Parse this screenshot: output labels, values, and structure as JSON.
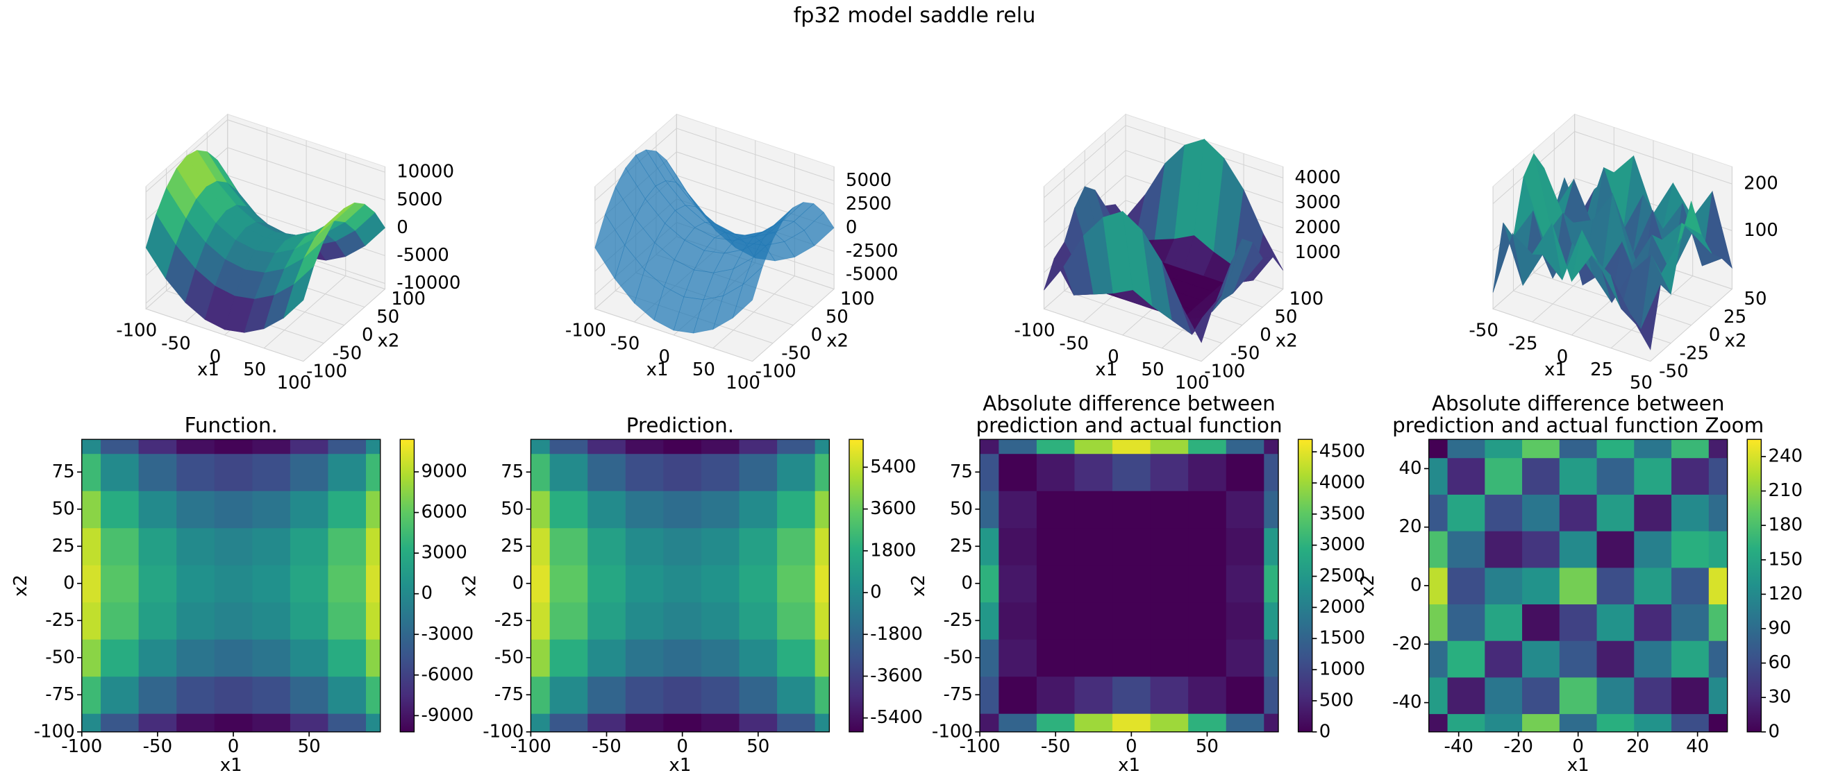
{
  "title": "fp32 model saddle relu",
  "chart_data": [
    {
      "type": "surface_contour",
      "title": [
        "Function."
      ],
      "xlabel": "x1",
      "ylabel": "x2",
      "colormap": "viridis",
      "x": [
        -100,
        -75,
        -50,
        -25,
        0,
        25,
        50,
        75,
        100
      ],
      "y": [
        -100,
        -75,
        -50,
        -25,
        0,
        25,
        50,
        75,
        100
      ],
      "z": [
        [
          0,
          -4375,
          -7500,
          -9375,
          -10000,
          -9375,
          -7500,
          -4375,
          0
        ],
        [
          4375,
          0,
          -3125,
          -5000,
          -5625,
          -5000,
          -3125,
          0,
          4375
        ],
        [
          7500,
          3125,
          0,
          -1875,
          -2500,
          -1875,
          0,
          3125,
          7500
        ],
        [
          9375,
          5000,
          1875,
          0,
          -625,
          0,
          1875,
          5000,
          9375
        ],
        [
          10000,
          5625,
          2500,
          625,
          0,
          625,
          2500,
          5625,
          10000
        ],
        [
          9375,
          5000,
          1875,
          0,
          -625,
          0,
          1875,
          5000,
          9375
        ],
        [
          7500,
          3125,
          0,
          -1875,
          -2500,
          -1875,
          0,
          3125,
          7500
        ],
        [
          4375,
          0,
          -3125,
          -5000,
          -5625,
          -5000,
          -3125,
          0,
          4375
        ],
        [
          0,
          -4375,
          -7500,
          -9375,
          -10000,
          -9375,
          -7500,
          -4375,
          0
        ]
      ],
      "surface": {
        "xlim": [
          -100,
          100
        ],
        "ylim": [
          -100,
          100
        ],
        "zlim": [
          -11000,
          11000
        ],
        "xticks": [
          -100,
          -50,
          0,
          50,
          100
        ],
        "yticks": [
          -100,
          -50,
          0,
          50,
          100
        ],
        "zticks": [
          -10000,
          -5000,
          0,
          5000,
          10000
        ]
      },
      "contour": {
        "xlim": [
          -100,
          97
        ],
        "ylim": [
          -100,
          97
        ],
        "xticks": [
          -100,
          -50,
          0,
          50
        ],
        "yticks": [
          -100,
          -75,
          -50,
          -25,
          0,
          25,
          50,
          75
        ],
        "clim": [
          -10200,
          11400
        ],
        "cticks": [
          -9000,
          -6000,
          -3000,
          0,
          3000,
          6000,
          9000
        ]
      }
    },
    {
      "type": "surface_contour",
      "title": [
        "Prediction."
      ],
      "xlabel": "x1",
      "ylabel": "x2",
      "colormap": "viridis",
      "x": [
        -100,
        -75,
        -50,
        -25,
        0,
        25,
        50,
        75,
        100
      ],
      "y": [
        -100,
        -75,
        -50,
        -25,
        0,
        25,
        50,
        75,
        100
      ],
      "z": [
        [
          0,
          -2600,
          -4500,
          -5600,
          -6000,
          -5600,
          -4500,
          -2600,
          0
        ],
        [
          2600,
          0,
          -1900,
          -3000,
          -3400,
          -3000,
          -1900,
          0,
          2600
        ],
        [
          4500,
          1900,
          0,
          -1100,
          -1500,
          -1100,
          0,
          1900,
          4500
        ],
        [
          5600,
          3000,
          1100,
          0,
          -400,
          0,
          1100,
          3000,
          5600
        ],
        [
          6000,
          3400,
          1500,
          400,
          0,
          400,
          1500,
          3400,
          6000
        ],
        [
          5600,
          3000,
          1100,
          0,
          -400,
          0,
          1100,
          3000,
          5600
        ],
        [
          4500,
          1900,
          0,
          -1100,
          -1500,
          -1100,
          0,
          1900,
          4500
        ],
        [
          2600,
          0,
          -1900,
          -3000,
          -3400,
          -3000,
          -1900,
          0,
          2600
        ],
        [
          0,
          -2600,
          -4500,
          -5600,
          -6000,
          -5600,
          -4500,
          -2600,
          0
        ]
      ],
      "surface": {
        "color": "#1f77b4",
        "xlim": [
          -100,
          100
        ],
        "ylim": [
          -100,
          100
        ],
        "zlim": [
          -6500,
          6500
        ],
        "xticks": [
          -100,
          -50,
          0,
          50,
          100
        ],
        "yticks": [
          -100,
          -50,
          0,
          50,
          100
        ],
        "zticks": [
          -5000,
          -2500,
          0,
          2500,
          5000
        ]
      },
      "contour": {
        "xlim": [
          -100,
          97
        ],
        "ylim": [
          -100,
          97
        ],
        "xticks": [
          -100,
          -50,
          0,
          50
        ],
        "yticks": [
          -100,
          -75,
          -50,
          -25,
          0,
          25,
          50,
          75
        ],
        "clim": [
          -6000,
          6600
        ],
        "cticks": [
          -5400,
          -3600,
          -1800,
          0,
          1800,
          3600,
          5400
        ]
      }
    },
    {
      "type": "surface_contour",
      "title": [
        "Absolute difference between",
        "prediction and actual function"
      ],
      "xlabel": "x1",
      "ylabel": "x2",
      "colormap": "viridis",
      "x": [
        -100,
        -75,
        -50,
        -25,
        0,
        25,
        50,
        75,
        100
      ],
      "y": [
        -100,
        -75,
        -50,
        -25,
        0,
        25,
        50,
        75,
        100
      ],
      "z": [
        [
          300,
          1500,
          3000,
          4000,
          4500,
          4000,
          3000,
          1500,
          300
        ],
        [
          1200,
          0,
          300,
          600,
          1000,
          600,
          300,
          0,
          1200
        ],
        [
          1500,
          300,
          0,
          0,
          0,
          0,
          0,
          300,
          1500
        ],
        [
          2500,
          200,
          0,
          0,
          0,
          0,
          0,
          200,
          2500
        ],
        [
          3000,
          300,
          0,
          0,
          0,
          0,
          0,
          300,
          3000
        ],
        [
          2500,
          200,
          0,
          0,
          0,
          0,
          0,
          200,
          2500
        ],
        [
          1500,
          300,
          0,
          0,
          0,
          0,
          0,
          300,
          1500
        ],
        [
          1200,
          0,
          300,
          600,
          1000,
          600,
          300,
          0,
          1200
        ],
        [
          300,
          1500,
          3000,
          4000,
          4500,
          4000,
          3000,
          1500,
          300
        ]
      ],
      "surface": {
        "xlim": [
          -100,
          100
        ],
        "ylim": [
          -100,
          100
        ],
        "zlim": [
          -450,
          4450
        ],
        "xticks": [
          -100,
          -50,
          0,
          50,
          100
        ],
        "yticks": [
          -100,
          -50,
          0,
          50,
          100
        ],
        "zticks": [
          1000,
          2000,
          3000,
          4000
        ]
      },
      "contour": {
        "xlim": [
          -100,
          97
        ],
        "ylim": [
          -100,
          97
        ],
        "xticks": [
          -100,
          -50,
          0,
          50
        ],
        "yticks": [
          -100,
          -75,
          -50,
          -25,
          0,
          25,
          50,
          75
        ],
        "clim": [
          0,
          4700
        ],
        "cticks": [
          0,
          500,
          1000,
          1500,
          2000,
          2500,
          3000,
          3500,
          4000,
          4500
        ]
      }
    },
    {
      "type": "surface_contour",
      "title": [
        "Absolute difference between",
        "prediction and actual function Zoom"
      ],
      "xlabel": "x1",
      "ylabel": "x2",
      "colormap": "viridis",
      "x": [
        -50,
        -37.5,
        -25,
        -12.5,
        0,
        12.5,
        25,
        37.5,
        50
      ],
      "y": [
        -50,
        -37.5,
        -25,
        -12.5,
        0,
        12.5,
        25,
        37.5,
        50
      ],
      "z": [
        [
          10,
          150,
          120,
          200,
          90,
          160,
          130,
          60,
          0
        ],
        [
          140,
          20,
          100,
          60,
          180,
          110,
          40,
          10,
          120
        ],
        [
          90,
          160,
          30,
          120,
          70,
          20,
          100,
          150,
          80
        ],
        [
          200,
          80,
          150,
          10,
          50,
          130,
          30,
          90,
          180
        ],
        [
          230,
          60,
          110,
          130,
          200,
          60,
          140,
          70,
          240
        ],
        [
          180,
          90,
          20,
          40,
          120,
          10,
          110,
          160,
          150
        ],
        [
          70,
          150,
          60,
          100,
          30,
          140,
          20,
          120,
          90
        ],
        [
          120,
          30,
          170,
          50,
          140,
          80,
          150,
          30,
          60
        ],
        [
          0,
          90,
          140,
          190,
          80,
          160,
          100,
          170,
          20
        ]
      ],
      "surface": {
        "xlim": [
          -50,
          50
        ],
        "ylim": [
          -50,
          50
        ],
        "zlim": [
          -25,
          237
        ],
        "xticks": [
          -50,
          -25,
          0,
          25,
          50
        ],
        "yticks": [
          -50,
          -25,
          0,
          25,
          50
        ],
        "zticks": [
          100,
          200
        ]
      },
      "contour": {
        "xlim": [
          -50,
          50
        ],
        "ylim": [
          -50,
          50
        ],
        "xticks": [
          -40,
          -20,
          0,
          20,
          40
        ],
        "yticks": [
          -40,
          -20,
          0,
          20,
          40
        ],
        "clim": [
          0,
          255
        ],
        "cticks": [
          0,
          30,
          60,
          90,
          120,
          150,
          180,
          210,
          240
        ]
      }
    }
  ]
}
